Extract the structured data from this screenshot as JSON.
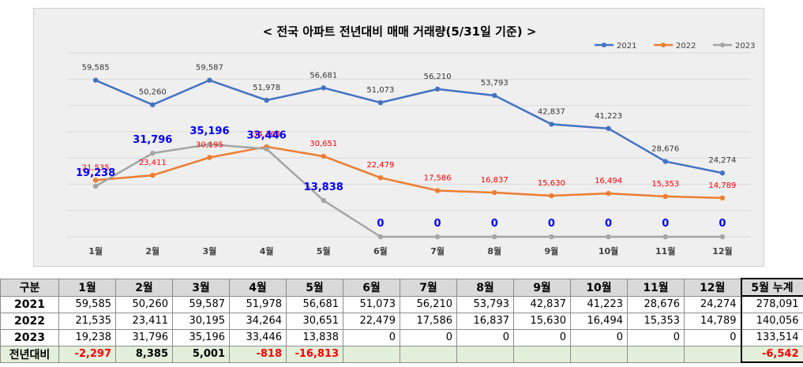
{
  "chart_data": {
    "type": "line",
    "title": "< 전국 아파트 전년대비 매매 거래량(5/31일 기준) >",
    "categories": [
      "1월",
      "2월",
      "3월",
      "4월",
      "5월",
      "6월",
      "7월",
      "8월",
      "9월",
      "10월",
      "11월",
      "12월"
    ],
    "series": [
      {
        "name": "2021",
        "color": "#4472c4",
        "label_color": "#333333",
        "label_bold": false,
        "values": [
          59585,
          50260,
          59587,
          51978,
          56681,
          51073,
          56210,
          53793,
          42837,
          41223,
          28676,
          24274
        ],
        "labels": [
          "59,585",
          "50,260",
          "59,587",
          "51,978",
          "56,681",
          "51,073",
          "56,210",
          "53,793",
          "42,837",
          "41,223",
          "28,676",
          "24,274"
        ]
      },
      {
        "name": "2022",
        "color": "#ed7d31",
        "label_color": "#ff0000",
        "label_bold": false,
        "values": [
          21535,
          23411,
          30195,
          34264,
          30651,
          22479,
          17586,
          16837,
          15630,
          16494,
          15353,
          14789
        ],
        "labels": [
          "21,535",
          "23,411",
          "30,195",
          "34,264",
          "30,651",
          "22,479",
          "17,586",
          "16,837",
          "15,630",
          "16,494",
          "15,353",
          "14,789"
        ]
      },
      {
        "name": "2023",
        "color": "#a5a5a5",
        "label_color": "#0000ff",
        "label_bold": true,
        "values": [
          19238,
          31796,
          35196,
          33446,
          13838,
          0,
          0,
          0,
          0,
          0,
          0,
          0
        ],
        "labels": [
          "19,238",
          "31,796",
          "35,196",
          "33,446",
          "13,838",
          "0",
          "0",
          "0",
          "0",
          "0",
          "0",
          "0"
        ]
      }
    ],
    "ylim": [
      0,
      70000
    ],
    "grid": true,
    "legend": "top-right"
  },
  "table": {
    "headers": [
      "구분",
      "1월",
      "2월",
      "3월",
      "4월",
      "5월",
      "6월",
      "7월",
      "8월",
      "9월",
      "10월",
      "11월",
      "12월",
      "5월 누계"
    ],
    "rows": [
      {
        "label": "2021",
        "cells": [
          "59,585",
          "50,260",
          "59,587",
          "51,978",
          "56,681",
          "51,073",
          "56,210",
          "53,793",
          "42,837",
          "41,223",
          "28,676",
          "24,274"
        ],
        "total": "278,091"
      },
      {
        "label": "2022",
        "cells": [
          "21,535",
          "23,411",
          "30,195",
          "34,264",
          "30,651",
          "22,479",
          "17,586",
          "16,837",
          "15,630",
          "16,494",
          "15,353",
          "14,789"
        ],
        "total": "140,056"
      },
      {
        "label": "2023",
        "cells": [
          "19,238",
          "31,796",
          "35,196",
          "33,446",
          "13,838",
          "0",
          "0",
          "0",
          "0",
          "0",
          "0",
          "0"
        ],
        "total": "133,514"
      }
    ],
    "diff": {
      "label": "전년대비",
      "cells": [
        "-2,297",
        "8,385",
        "5,001",
        "-818",
        "-16,813",
        "",
        "",
        "",
        "",
        "",
        "",
        ""
      ],
      "total": "-6,542"
    }
  }
}
